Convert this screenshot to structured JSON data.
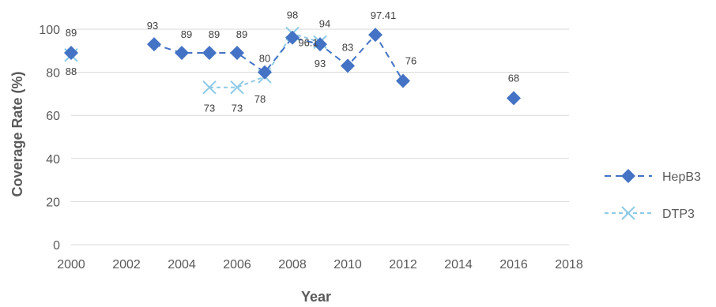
{
  "chart_data": {
    "type": "line",
    "title": "",
    "xlabel": "Year",
    "ylabel": "Coverage Rate (%)",
    "xlim": [
      2000,
      2018
    ],
    "ylim": [
      0,
      100
    ],
    "x_ticks": [
      2000,
      2002,
      2004,
      2006,
      2008,
      2010,
      2012,
      2014,
      2016,
      2018
    ],
    "y_ticks": [
      0,
      20,
      40,
      60,
      80,
      100
    ],
    "grid": "horizontal",
    "legend_position": "right",
    "series": [
      {
        "name": "HepB3",
        "color": "#4472c4",
        "marker": "diamond",
        "line_style": "dashed",
        "segments": [
          [
            [
              2000,
              89
            ]
          ],
          [
            [
              2003,
              93
            ],
            [
              2004,
              89
            ],
            [
              2005,
              89
            ],
            [
              2006,
              89
            ],
            [
              2007,
              80
            ],
            [
              2008,
              96.1
            ],
            [
              2009,
              93
            ],
            [
              2010,
              83
            ],
            [
              2011,
              97.41
            ],
            [
              2012,
              76
            ]
          ],
          [
            [
              2016,
              68
            ]
          ]
        ],
        "labels": [
          "89",
          "93",
          "89",
          "89",
          "89",
          "80",
          "96.1",
          "93",
          "83",
          "97.41",
          "76",
          "68"
        ]
      },
      {
        "name": "DTP3",
        "color": "#8ecae6",
        "marker": "x",
        "line_style": "dashed",
        "segments": [
          [
            [
              2000,
              88
            ]
          ],
          [
            [
              2005,
              73
            ],
            [
              2006,
              73
            ],
            [
              2007,
              78
            ],
            [
              2008,
              98
            ],
            [
              2009,
              94
            ]
          ]
        ],
        "labels": [
          "88",
          "73",
          "73",
          "78",
          "98",
          "94"
        ]
      }
    ]
  }
}
